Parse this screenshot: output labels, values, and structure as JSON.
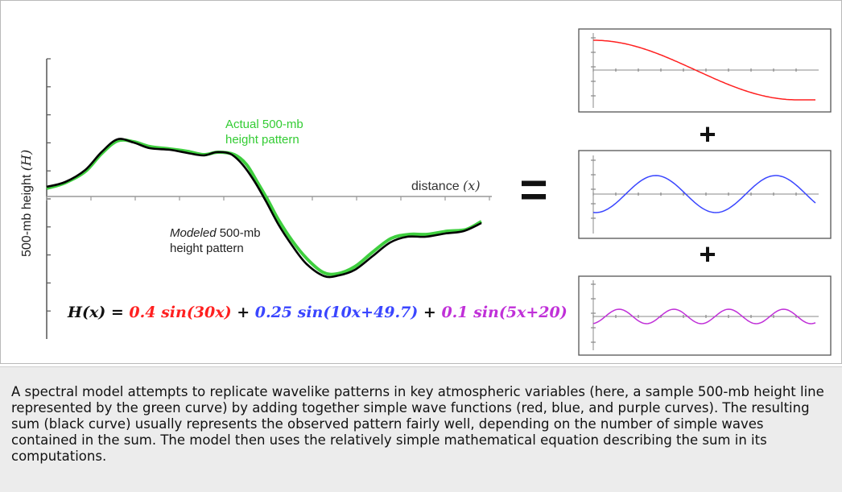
{
  "figure": {
    "y_axis_label": "500-mb height",
    "y_axis_var": "(H)",
    "x_axis_label": "distance",
    "x_axis_var": "(x)",
    "actual_label_line1": "Actual 500-mb",
    "actual_label_line2": "height pattern",
    "modeled_label_italic": "Modeled",
    "modeled_label_rest": " 500-mb",
    "modeled_label_line2": "height pattern",
    "equals_sign": "=",
    "plus_sign_1": "+",
    "plus_sign_2": "+",
    "equation": {
      "lhs": "H(x) = ",
      "term1": "0.4 sin(30x)",
      "op1": " + ",
      "term2": "0.25 sin(10x+49.7)",
      "op2": " + ",
      "term3": "0.1 sin(5x+20)"
    },
    "colors": {
      "actual": "#3fcf3f",
      "modeled": "#000000",
      "red": "#ff2020",
      "blue": "#3a46ff",
      "purple": "#c030d8",
      "actual_label": "#33cc33"
    }
  },
  "caption": {
    "text": "A spectral model attempts to replicate wavelike patterns in key atmospheric variables (here, a sample 500-mb height line represented by the green curve) by adding together simple wave functions (red, blue, and purple curves). The resulting sum (black curve) usually represents the observed pattern fairly well, depending on the number of simple waves contained in the sum. The model then uses the relatively simple mathematical equation describing the sum in its computations."
  }
}
